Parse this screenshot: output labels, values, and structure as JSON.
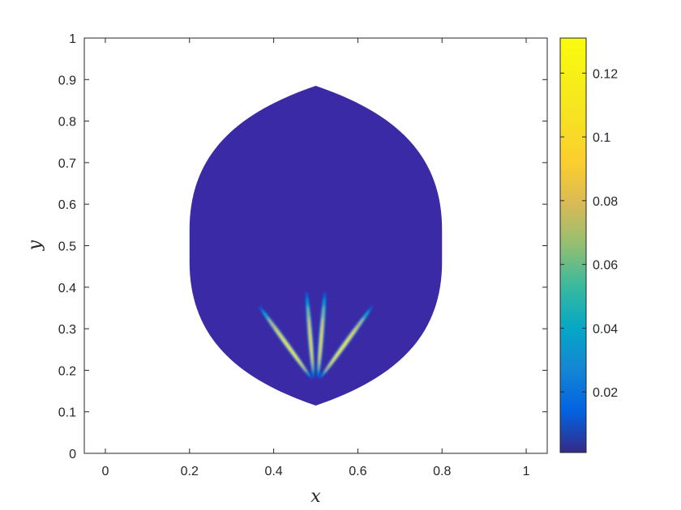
{
  "chart_data": {
    "type": "heatmap",
    "title": "",
    "xlabel": "x",
    "ylabel": "y",
    "xlim": [
      -0.05,
      1.05
    ],
    "ylim": [
      0,
      1
    ],
    "x_ticks": [
      0,
      0.2,
      0.4,
      0.6,
      0.8,
      1
    ],
    "x_tick_labels": [
      "0",
      "0.2",
      "0.4",
      "0.6",
      "0.8",
      "1"
    ],
    "y_ticks": [
      0,
      0.1,
      0.2,
      0.3,
      0.4,
      0.5,
      0.6,
      0.7,
      0.8,
      0.9,
      1
    ],
    "y_tick_labels": [
      "0",
      "0.1",
      "0.2",
      "0.3",
      "0.4",
      "0.5",
      "0.6",
      "0.7",
      "0.8",
      "0.9",
      "1"
    ],
    "grid": false,
    "domain": {
      "shape": "lens",
      "x_range": [
        0.2,
        0.8
      ],
      "y_range": [
        0.115,
        0.885
      ],
      "background_value": 0.001
    },
    "streaks": [
      {
        "from": [
          0.49,
          0.18
        ],
        "to": [
          0.365,
          0.355
        ],
        "peak": 0.13
      },
      {
        "from": [
          0.495,
          0.18
        ],
        "to": [
          0.478,
          0.39
        ],
        "peak": 0.11
      },
      {
        "from": [
          0.505,
          0.18
        ],
        "to": [
          0.522,
          0.39
        ],
        "peak": 0.11
      },
      {
        "from": [
          0.51,
          0.18
        ],
        "to": [
          0.635,
          0.355
        ],
        "peak": 0.13
      }
    ],
    "colorbar": {
      "colormap": "parula",
      "range": [
        0.001,
        0.131
      ],
      "ticks": [
        0.02,
        0.04,
        0.06,
        0.08,
        0.1,
        0.12
      ],
      "tick_labels": [
        "0.02",
        "0.04",
        "0.06",
        "0.08",
        "0.1",
        "0.12"
      ],
      "placement": "right"
    }
  }
}
